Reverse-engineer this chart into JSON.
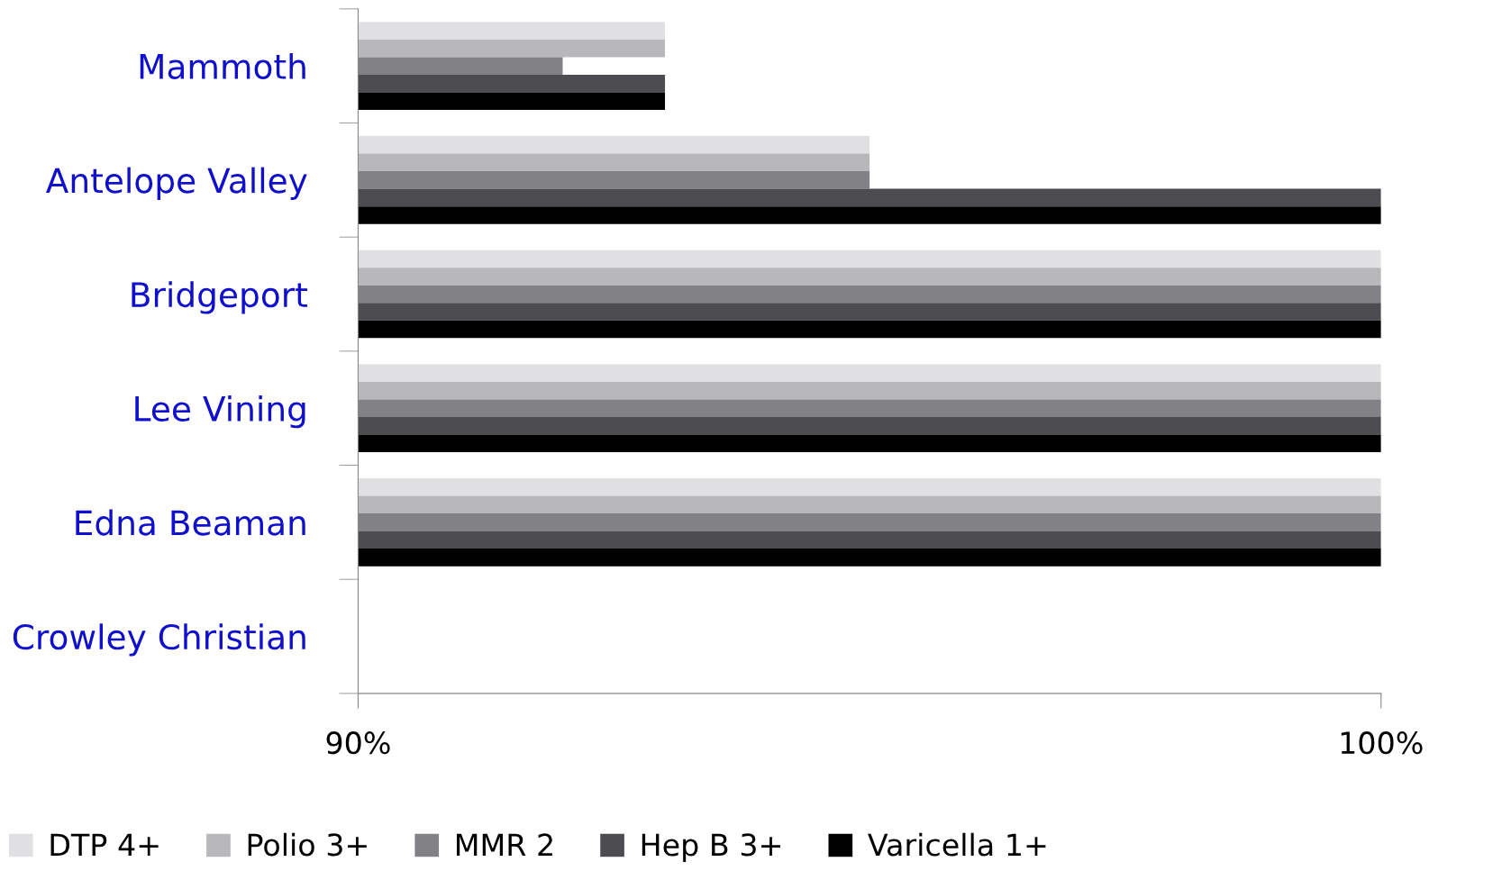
{
  "chart_data": {
    "type": "bar",
    "orientation": "horizontal",
    "categories": [
      "Mammoth",
      "Antelope Valley",
      "Bridgeport",
      "Lee Vining",
      "Edna Beaman",
      "Crowley Christian"
    ],
    "series": [
      {
        "name": "DTP 4+",
        "color": "#e0e0e2",
        "values": [
          93,
          95,
          100,
          100,
          100,
          null
        ]
      },
      {
        "name": "Polio 3+",
        "color": "#b8b8bb",
        "values": [
          93,
          95,
          100,
          100,
          100,
          null
        ]
      },
      {
        "name": "MMR 2",
        "color": "#828286",
        "values": [
          92,
          95,
          100,
          100,
          100,
          null
        ]
      },
      {
        "name": "Hep B 3+",
        "color": "#4d4c51",
        "values": [
          93,
          100,
          100,
          100,
          100,
          null
        ]
      },
      {
        "name": "Varicella 1+",
        "color": "#000000",
        "values": [
          93,
          100,
          100,
          100,
          100,
          null
        ]
      }
    ],
    "xlim": [
      90,
      100
    ],
    "xticks": [
      {
        "value": 90,
        "label": "90%"
      },
      {
        "value": 100,
        "label": "100%"
      }
    ],
    "grid": false,
    "legend": "bottom"
  }
}
